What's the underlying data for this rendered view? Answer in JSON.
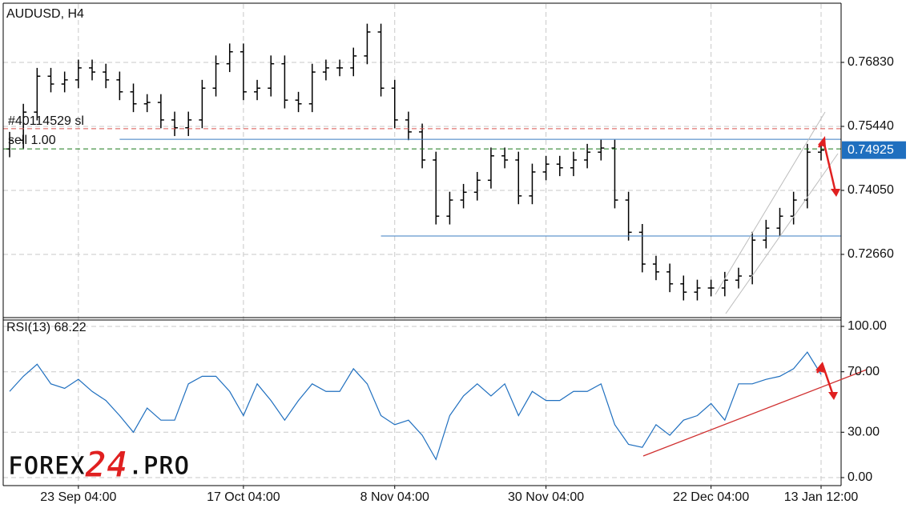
{
  "chart_data": [
    {
      "type": "ohlc",
      "title": "AUDUSD, H4",
      "categories": [
        null,
        null,
        null,
        null,
        null,
        "23 Sep 04:00",
        null,
        null,
        null,
        null,
        null,
        null,
        null,
        null,
        null,
        null,
        null,
        "17 Oct 04:00",
        null,
        null,
        null,
        null,
        null,
        null,
        null,
        null,
        null,
        null,
        "8 Nov 04:00",
        null,
        null,
        null,
        null,
        null,
        null,
        null,
        null,
        null,
        null,
        "30 Nov 04:00",
        null,
        null,
        null,
        null,
        null,
        null,
        null,
        null,
        null,
        null,
        null,
        "22 Dec 04:00",
        null,
        null,
        null,
        null,
        null,
        null,
        null,
        "13 Jan 12:00"
      ],
      "open": [
        0.7495,
        0.7514,
        0.7575,
        0.7653,
        0.7636,
        0.7645,
        0.7671,
        0.7662,
        0.7645,
        0.7619,
        0.7593,
        0.7596,
        0.7558,
        0.7541,
        0.7558,
        0.7627,
        0.768,
        0.7706,
        0.7619,
        0.7627,
        0.768,
        0.7601,
        0.7593,
        0.7662,
        0.7671,
        0.7671,
        0.7697,
        0.7749,
        0.7627,
        0.7558,
        0.7532,
        0.7471,
        0.7349,
        0.7384,
        0.7401,
        0.7427,
        0.748,
        0.7471,
        0.7393,
        0.7445,
        0.7462,
        0.7454,
        0.7471,
        0.7488,
        0.7497,
        0.7384,
        0.7314,
        0.7245,
        0.7228,
        0.7202,
        0.7184,
        0.7193,
        0.7193,
        0.721,
        0.7219,
        0.7297,
        0.7323,
        0.7349,
        0.7384,
        0.7488
      ],
      "high": [
        0.7532,
        0.7593,
        0.7671,
        0.7671,
        0.7663,
        0.7689,
        0.7689,
        0.768,
        0.7663,
        0.7637,
        0.7614,
        0.7614,
        0.7576,
        0.7576,
        0.7645,
        0.7698,
        0.7724,
        0.7724,
        0.7645,
        0.7698,
        0.7698,
        0.7619,
        0.768,
        0.7689,
        0.7689,
        0.7715,
        0.7767,
        0.7767,
        0.7645,
        0.7576,
        0.755,
        0.7489,
        0.7402,
        0.7419,
        0.7445,
        0.7498,
        0.7498,
        0.7489,
        0.7463,
        0.748,
        0.748,
        0.7489,
        0.7506,
        0.7515,
        0.7515,
        0.7402,
        0.7332,
        0.7263,
        0.7246,
        0.722,
        0.7211,
        0.7211,
        0.7228,
        0.7237,
        0.7315,
        0.7341,
        0.7367,
        0.7402,
        0.7506,
        0.751
      ],
      "low": [
        0.7477,
        0.7496,
        0.7557,
        0.7618,
        0.7618,
        0.7627,
        0.7644,
        0.7627,
        0.7601,
        0.7575,
        0.7575,
        0.754,
        0.7523,
        0.7523,
        0.754,
        0.7609,
        0.7662,
        0.7601,
        0.7601,
        0.7609,
        0.7583,
        0.7575,
        0.7575,
        0.7644,
        0.7653,
        0.7653,
        0.7679,
        0.7609,
        0.754,
        0.7514,
        0.7453,
        0.7331,
        0.7331,
        0.7366,
        0.7383,
        0.7409,
        0.7453,
        0.7375,
        0.7375,
        0.7427,
        0.7436,
        0.7436,
        0.7453,
        0.747,
        0.7366,
        0.7296,
        0.7227,
        0.721,
        0.7184,
        0.7166,
        0.7166,
        0.7175,
        0.7175,
        0.7192,
        0.7201,
        0.7279,
        0.7305,
        0.7331,
        0.7366,
        0.747
      ],
      "close": [
        0.7514,
        0.7575,
        0.7653,
        0.7636,
        0.7645,
        0.7671,
        0.7662,
        0.7645,
        0.7619,
        0.7593,
        0.7596,
        0.7558,
        0.7541,
        0.7558,
        0.7627,
        0.768,
        0.7706,
        0.7619,
        0.7627,
        0.768,
        0.7601,
        0.7593,
        0.7662,
        0.7671,
        0.7671,
        0.7697,
        0.7749,
        0.7627,
        0.7558,
        0.7532,
        0.7471,
        0.7349,
        0.7384,
        0.7401,
        0.7427,
        0.748,
        0.7471,
        0.7393,
        0.7445,
        0.7462,
        0.7454,
        0.7471,
        0.7488,
        0.7497,
        0.7384,
        0.7314,
        0.7245,
        0.7228,
        0.7202,
        0.7184,
        0.7193,
        0.7193,
        0.721,
        0.7219,
        0.7297,
        0.7323,
        0.7349,
        0.7384,
        0.7488,
        0.74925
      ],
      "color": "#000000",
      "ylim": [
        0.71287,
        0.78098
      ],
      "yticks": [
        {
          "value": 0.7683,
          "label": "0.76830"
        },
        {
          "value": 0.7544,
          "label": "0.75440"
        },
        {
          "value": 0.7405,
          "label": "0.74050"
        },
        {
          "value": 0.7266,
          "label": "0.72660"
        }
      ],
      "grid": true,
      "current_price": 0.74925,
      "current_price_color": "#1f6fbf",
      "levels": [
        {
          "value": 0.7539,
          "color": "#d9534f",
          "dashed": true,
          "start": 0
        },
        {
          "value": 0.7495,
          "color": "#1a7a1a",
          "dashed": true,
          "start": 0
        },
        {
          "value": 0.7516,
          "color": "#3a7cc2",
          "dashed": false,
          "start": 8
        },
        {
          "value": 0.7306,
          "color": "#3a7cc2",
          "dashed": false,
          "start": 27
        }
      ],
      "annotations": [
        "#40114529 sl",
        "sell 1.00"
      ]
    },
    {
      "type": "line",
      "title": "RSI(13) 68.22",
      "values": [
        57,
        67,
        75,
        62,
        59,
        65,
        57,
        51,
        41,
        30,
        46,
        38,
        38,
        62,
        67,
        67,
        57,
        41,
        62,
        51,
        38,
        51,
        62,
        57,
        57,
        72,
        62,
        41,
        35,
        38,
        28,
        12,
        41,
        54,
        62,
        54,
        62,
        41,
        57,
        51,
        51,
        57,
        57,
        62,
        35,
        22,
        20,
        35,
        28,
        38,
        41,
        49,
        38,
        62,
        62,
        65,
        67,
        72,
        83,
        68.22
      ],
      "color": "#1f6fbf",
      "ylim": [
        -5.3,
        105.3
      ],
      "yticks": [
        {
          "value": 100,
          "label": "100.00"
        },
        {
          "value": 70,
          "label": "70.00"
        },
        {
          "value": 30,
          "label": "30.00"
        },
        {
          "value": 0,
          "label": "0.00"
        }
      ],
      "grid": true
    }
  ],
  "logo": {
    "left": "FOREX",
    "mid": "24",
    "right": ".PRO"
  }
}
